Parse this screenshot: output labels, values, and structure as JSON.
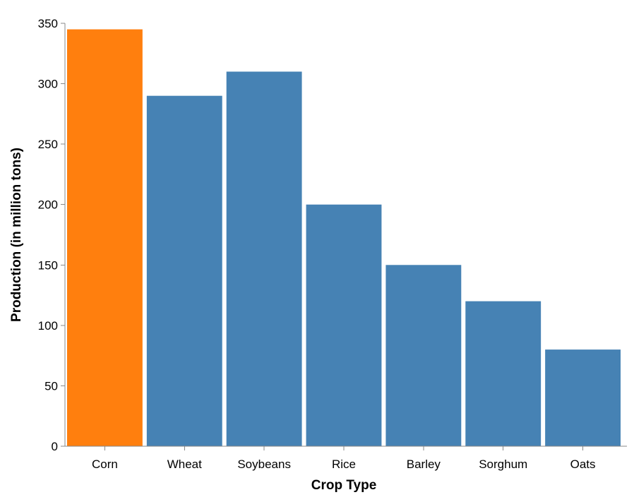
{
  "chart_data": {
    "type": "bar",
    "title": "",
    "xlabel": "Crop Type",
    "ylabel": "Production (in million tons)",
    "categories": [
      "Corn",
      "Wheat",
      "Soybeans",
      "Rice",
      "Barley",
      "Sorghum",
      "Oats"
    ],
    "values": [
      345,
      290,
      310,
      200,
      150,
      120,
      80
    ],
    "ylim": [
      0,
      350
    ],
    "yticks": [
      0,
      50,
      100,
      150,
      200,
      250,
      300,
      350
    ],
    "highlight_category": "Corn",
    "colors": {
      "default": "#4682b4",
      "highlight": "#ff7f0e"
    },
    "grid": false,
    "legend": "none"
  }
}
